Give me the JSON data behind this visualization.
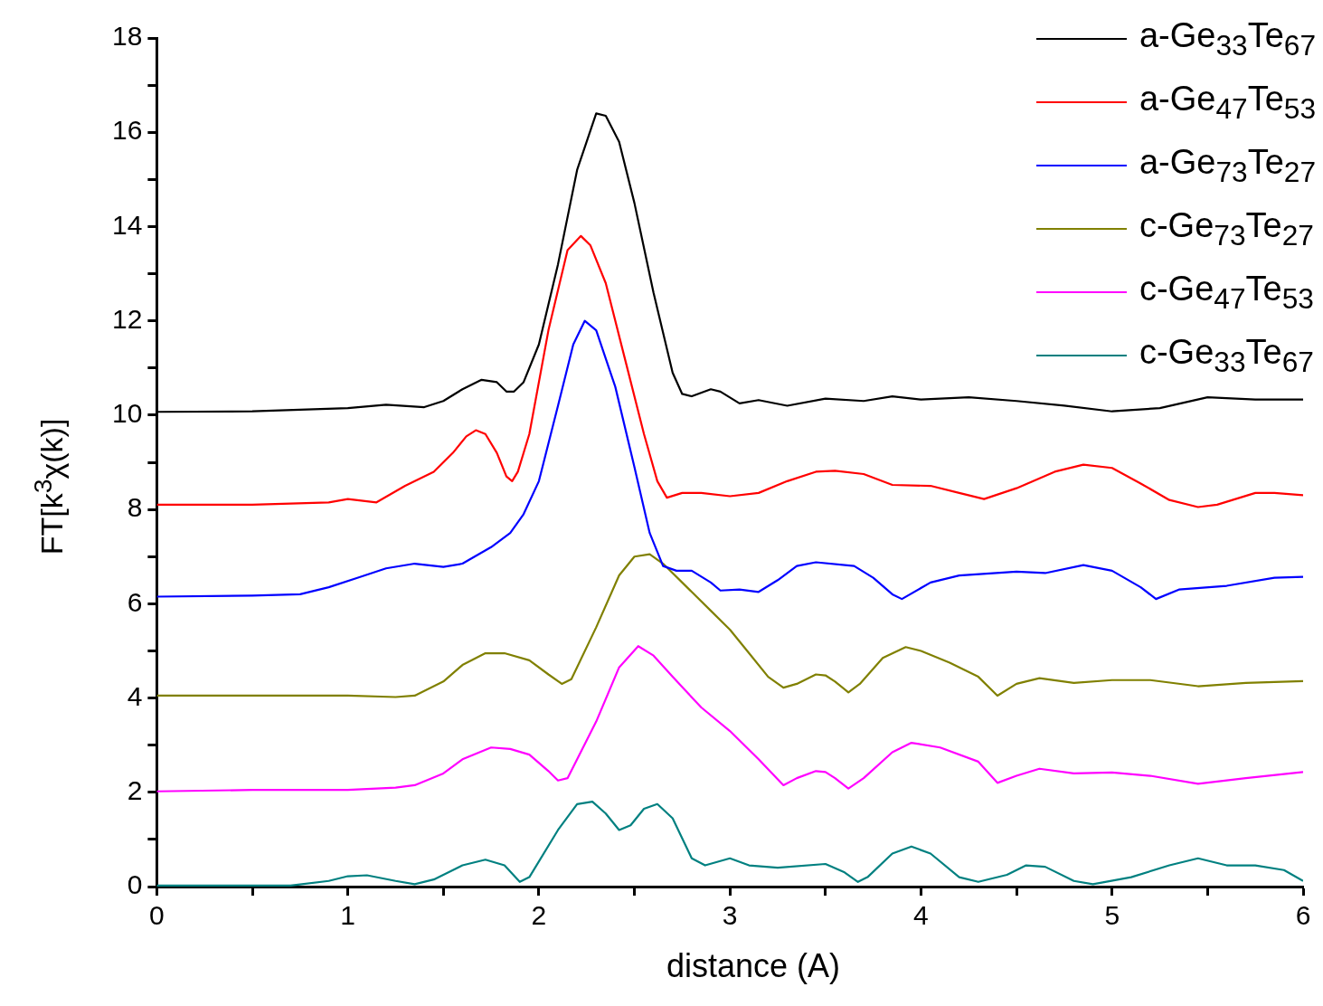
{
  "chart_data": {
    "type": "line",
    "xlabel": "distance (A)",
    "ylabel": "FT[k$^{3}$χ(k)]",
    "xlim": [
      0,
      6
    ],
    "ylim": [
      0,
      18
    ],
    "xticks": [
      0,
      {
        "value": 0.5,
        "label": null
      },
      1,
      {
        "value": 1.5,
        "label": null
      },
      2,
      {
        "value": 2.5,
        "label": null
      },
      3,
      {
        "value": 3.5,
        "label": null
      },
      4,
      {
        "value": 4.5,
        "label": null
      },
      5,
      {
        "value": 5.5,
        "label": null
      },
      6
    ],
    "yticks": [
      0,
      {
        "value": 1,
        "label": null
      },
      2,
      {
        "value": 3,
        "label": null
      },
      4,
      {
        "value": 5,
        "label": null
      },
      6,
      {
        "value": 7,
        "label": null
      },
      8,
      {
        "value": 9,
        "label": null
      },
      10,
      {
        "value": 11,
        "label": null
      },
      12,
      {
        "value": 13,
        "label": null
      },
      14,
      {
        "value": 15,
        "label": null
      },
      16,
      {
        "value": 17,
        "label": null
      },
      18
    ],
    "grid": false,
    "legend": "top right",
    "marker": "none",
    "line_style": "solid",
    "series": [
      {
        "name": "a-Ge$_{33}$Te$_{67}$",
        "color": "#000000",
        "x": [
          0,
          0.5,
          1.0,
          1.2,
          1.4,
          1.5,
          1.6,
          1.7,
          1.78,
          1.83,
          1.87,
          1.92,
          2.0,
          2.1,
          2.2,
          2.3,
          2.35,
          2.42,
          2.5,
          2.6,
          2.7,
          2.75,
          2.8,
          2.9,
          2.95,
          3.05,
          3.15,
          3.3,
          3.5,
          3.7,
          3.85,
          4.0,
          4.25,
          4.5,
          4.75,
          5.0,
          5.25,
          5.5,
          5.75,
          6
        ],
        "values": [
          10.07,
          10.08,
          10.15,
          10.22,
          10.17,
          10.3,
          10.55,
          10.75,
          10.7,
          10.5,
          10.5,
          10.7,
          11.5,
          13.2,
          15.2,
          16.4,
          16.35,
          15.8,
          14.5,
          12.6,
          10.9,
          10.45,
          10.4,
          10.55,
          10.5,
          10.25,
          10.32,
          10.2,
          10.35,
          10.3,
          10.4,
          10.33,
          10.38,
          10.3,
          10.2,
          10.08,
          10.15,
          10.38,
          10.33,
          10.33
        ]
      },
      {
        "name": "a-Ge$_{47}$Te$_{53}$",
        "color": "#ff0000",
        "x": [
          0,
          0.5,
          0.9,
          1.0,
          1.15,
          1.3,
          1.45,
          1.55,
          1.62,
          1.67,
          1.72,
          1.78,
          1.83,
          1.86,
          1.89,
          1.95,
          2.05,
          2.15,
          2.22,
          2.27,
          2.35,
          2.45,
          2.55,
          2.62,
          2.67,
          2.75,
          2.85,
          3.0,
          3.15,
          3.3,
          3.45,
          3.55,
          3.7,
          3.85,
          4.05,
          4.2,
          4.33,
          4.5,
          4.7,
          4.85,
          5.0,
          5.15,
          5.3,
          5.45,
          5.55,
          5.75,
          5.85,
          6
        ],
        "values": [
          8.1,
          8.1,
          8.15,
          8.22,
          8.15,
          8.5,
          8.8,
          9.2,
          9.55,
          9.68,
          9.6,
          9.2,
          8.7,
          8.6,
          8.8,
          9.6,
          11.8,
          13.5,
          13.8,
          13.6,
          12.8,
          11.2,
          9.6,
          8.6,
          8.25,
          8.35,
          8.35,
          8.28,
          8.35,
          8.6,
          8.8,
          8.82,
          8.75,
          8.52,
          8.5,
          8.35,
          8.22,
          8.45,
          8.8,
          8.95,
          8.88,
          8.55,
          8.2,
          8.05,
          8.1,
          8.35,
          8.35,
          8.3
        ]
      },
      {
        "name": "a-Ge$_{73}$Te$_{27}$",
        "color": "#0000ff",
        "x": [
          0,
          0.5,
          0.75,
          0.9,
          1.05,
          1.2,
          1.35,
          1.5,
          1.6,
          1.75,
          1.85,
          1.92,
          2.0,
          2.1,
          2.18,
          2.24,
          2.3,
          2.4,
          2.5,
          2.58,
          2.65,
          2.72,
          2.8,
          2.9,
          2.95,
          3.05,
          3.15,
          3.25,
          3.35,
          3.45,
          3.65,
          3.75,
          3.85,
          3.9,
          4.05,
          4.2,
          4.5,
          4.65,
          4.85,
          5.0,
          5.15,
          5.23,
          5.35,
          5.6,
          5.85,
          6
        ],
        "values": [
          6.15,
          6.17,
          6.2,
          6.35,
          6.55,
          6.75,
          6.85,
          6.78,
          6.85,
          7.2,
          7.5,
          7.9,
          8.6,
          10.2,
          11.5,
          12.0,
          11.8,
          10.6,
          8.9,
          7.5,
          6.8,
          6.7,
          6.7,
          6.45,
          6.28,
          6.3,
          6.25,
          6.5,
          6.8,
          6.88,
          6.8,
          6.55,
          6.2,
          6.1,
          6.45,
          6.6,
          6.68,
          6.65,
          6.82,
          6.7,
          6.35,
          6.1,
          6.3,
          6.38,
          6.55,
          6.57
        ]
      },
      {
        "name": "c-Ge$_{73}$Te$_{27}$",
        "color": "#808000",
        "x": [
          0,
          0.5,
          1.0,
          1.25,
          1.35,
          1.5,
          1.6,
          1.72,
          1.82,
          1.95,
          2.05,
          2.12,
          2.17,
          2.3,
          2.42,
          2.5,
          2.58,
          2.65,
          2.8,
          2.9,
          3.0,
          3.1,
          3.2,
          3.28,
          3.35,
          3.45,
          3.5,
          3.55,
          3.62,
          3.68,
          3.8,
          3.92,
          4.0,
          4.15,
          4.3,
          4.4,
          4.5,
          4.62,
          4.8,
          5.0,
          5.2,
          5.45,
          5.7,
          6
        ],
        "values": [
          4.05,
          4.05,
          4.05,
          4.02,
          4.05,
          4.35,
          4.7,
          4.95,
          4.95,
          4.8,
          4.5,
          4.3,
          4.4,
          5.5,
          6.6,
          7.0,
          7.05,
          6.85,
          6.25,
          5.85,
          5.45,
          4.95,
          4.45,
          4.22,
          4.3,
          4.5,
          4.48,
          4.35,
          4.12,
          4.3,
          4.85,
          5.08,
          5.0,
          4.75,
          4.45,
          4.05,
          4.3,
          4.42,
          4.32,
          4.38,
          4.38,
          4.25,
          4.32,
          4.36
        ]
      },
      {
        "name": "c-Ge$_{47}$Te$_{53}$",
        "color": "#ff00ff",
        "x": [
          0,
          0.5,
          1.0,
          1.25,
          1.35,
          1.5,
          1.6,
          1.75,
          1.85,
          1.95,
          2.05,
          2.1,
          2.15,
          2.3,
          2.42,
          2.52,
          2.6,
          2.7,
          2.85,
          3.0,
          3.15,
          3.28,
          3.35,
          3.45,
          3.5,
          3.55,
          3.62,
          3.7,
          3.85,
          3.95,
          4.1,
          4.3,
          4.4,
          4.5,
          4.62,
          4.8,
          5.0,
          5.2,
          5.45,
          5.7,
          6
        ],
        "values": [
          2.02,
          2.05,
          2.05,
          2.1,
          2.15,
          2.4,
          2.7,
          2.95,
          2.92,
          2.8,
          2.45,
          2.25,
          2.3,
          3.5,
          4.65,
          5.1,
          4.9,
          4.45,
          3.8,
          3.3,
          2.7,
          2.15,
          2.3,
          2.45,
          2.43,
          2.3,
          2.08,
          2.3,
          2.85,
          3.05,
          2.95,
          2.65,
          2.2,
          2.35,
          2.5,
          2.4,
          2.42,
          2.35,
          2.18,
          2.3,
          2.43
        ]
      },
      {
        "name": "c-Ge$_{33}$Te$_{67}$",
        "color": "#008080",
        "x": [
          0,
          0.5,
          0.7,
          0.9,
          1.0,
          1.1,
          1.25,
          1.35,
          1.45,
          1.6,
          1.72,
          1.82,
          1.9,
          1.95,
          2.1,
          2.2,
          2.28,
          2.35,
          2.42,
          2.48,
          2.55,
          2.62,
          2.7,
          2.8,
          2.87,
          3.0,
          3.1,
          3.25,
          3.5,
          3.6,
          3.67,
          3.72,
          3.85,
          3.95,
          4.05,
          4.2,
          4.3,
          4.45,
          4.55,
          4.65,
          4.8,
          4.9,
          5.1,
          5.3,
          5.45,
          5.6,
          5.75,
          5.9,
          6
        ],
        "values": [
          0.02,
          0.02,
          0.02,
          0.12,
          0.22,
          0.24,
          0.12,
          0.05,
          0.15,
          0.45,
          0.57,
          0.45,
          0.1,
          0.2,
          1.2,
          1.75,
          1.8,
          1.55,
          1.2,
          1.3,
          1.65,
          1.75,
          1.45,
          0.6,
          0.45,
          0.6,
          0.45,
          0.4,
          0.48,
          0.3,
          0.1,
          0.2,
          0.7,
          0.85,
          0.7,
          0.2,
          0.1,
          0.25,
          0.45,
          0.42,
          0.12,
          0.05,
          0.2,
          0.45,
          0.6,
          0.45,
          0.45,
          0.35,
          0.12
        ]
      }
    ]
  }
}
